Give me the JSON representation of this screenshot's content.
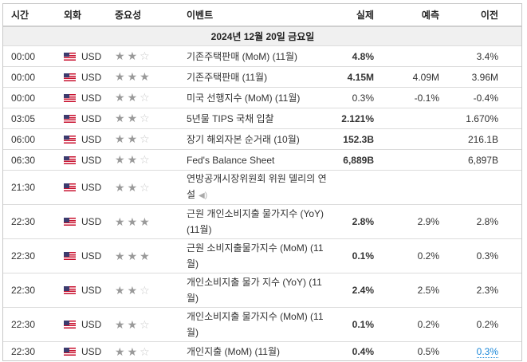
{
  "header": {
    "time": "시간",
    "currency": "외화",
    "importance": "중요성",
    "event": "이벤트",
    "actual": "실제",
    "forecast": "예측",
    "previous": "이전"
  },
  "date_label": "2024년 12월 20일 금요일",
  "colors": {
    "actual_red": "#e3102a",
    "actual_blue": "#1a87d8",
    "star": "#9a9a9a",
    "date_bg": "#f0f0f0"
  },
  "rows": [
    {
      "time": "00:00",
      "flag_icon": "us-flag-icon",
      "currency": "USD",
      "stars": 2,
      "event": "기존주택판매 (MoM) (11월)",
      "actual": "4.8%",
      "actual_style": "bold",
      "forecast": "",
      "previous": "3.4%"
    },
    {
      "time": "00:00",
      "flag_icon": "us-flag-icon",
      "currency": "USD",
      "stars": 3,
      "event": "기존주택판매 (11월)",
      "actual": "4.15M",
      "actual_style": "red",
      "forecast": "4.09M",
      "previous": "3.96M"
    },
    {
      "time": "00:00",
      "flag_icon": "us-flag-icon",
      "currency": "USD",
      "stars": 2,
      "event": "미국 선행지수 (MoM) (11월)",
      "actual": "0.3%",
      "actual_style": "red",
      "forecast": "-0.1%",
      "previous": "-0.4%"
    },
    {
      "time": "03:05",
      "flag_icon": "us-flag-icon",
      "currency": "USD",
      "stars": 2,
      "event": "5년물 TIPS 국채 입찰",
      "actual": "2.121%",
      "actual_style": "bold",
      "forecast": "",
      "previous": "1.670%"
    },
    {
      "time": "06:00",
      "flag_icon": "us-flag-icon",
      "currency": "USD",
      "stars": 2,
      "event": "장기 해외자본 순거래 (10월)",
      "actual": "152.3B",
      "actual_style": "bold",
      "forecast": "",
      "previous": "216.1B"
    },
    {
      "time": "06:30",
      "flag_icon": "us-flag-icon",
      "currency": "USD",
      "stars": 2,
      "event": "Fed's Balance Sheet",
      "actual": "6,889B",
      "actual_style": "bold",
      "forecast": "",
      "previous": "6,897B"
    },
    {
      "time": "21:30",
      "flag_icon": "us-flag-icon",
      "currency": "USD",
      "stars": 2,
      "event": "연방공개시장위원회 위원 델리의 연설",
      "speaker_icon": "speaker-icon",
      "actual": "",
      "actual_style": "bold",
      "forecast": "",
      "previous": ""
    },
    {
      "time": "22:30",
      "flag_icon": "us-flag-icon",
      "currency": "USD",
      "stars": 3,
      "event": "근원 개인소비지출 물가지수 (YoY) (11월)",
      "actual": "2.8%",
      "actual_style": "blue",
      "forecast": "2.9%",
      "previous": "2.8%"
    },
    {
      "time": "22:30",
      "flag_icon": "us-flag-icon",
      "currency": "USD",
      "stars": 3,
      "event": "근원 소비지출물가지수 (MoM) (11월)",
      "actual": "0.1%",
      "actual_style": "blue",
      "forecast": "0.2%",
      "previous": "0.3%"
    },
    {
      "time": "22:30",
      "flag_icon": "us-flag-icon",
      "currency": "USD",
      "stars": 2,
      "event": "개인소비지출 물가 지수 (YoY) (11월)",
      "actual": "2.4%",
      "actual_style": "blue",
      "forecast": "2.5%",
      "previous": "2.3%"
    },
    {
      "time": "22:30",
      "flag_icon": "us-flag-icon",
      "currency": "USD",
      "stars": 2,
      "event": "개인소비지출 물가지수 (MoM) (11월)",
      "actual": "0.1%",
      "actual_style": "blue",
      "forecast": "0.2%",
      "previous": "0.2%"
    },
    {
      "time": "22:30",
      "flag_icon": "us-flag-icon",
      "currency": "USD",
      "stars": 2,
      "event": "개인지출 (MoM) (11월)",
      "actual": "0.4%",
      "actual_style": "blue",
      "forecast": "0.5%",
      "previous": "0.3%",
      "previous_revised": true
    }
  ]
}
